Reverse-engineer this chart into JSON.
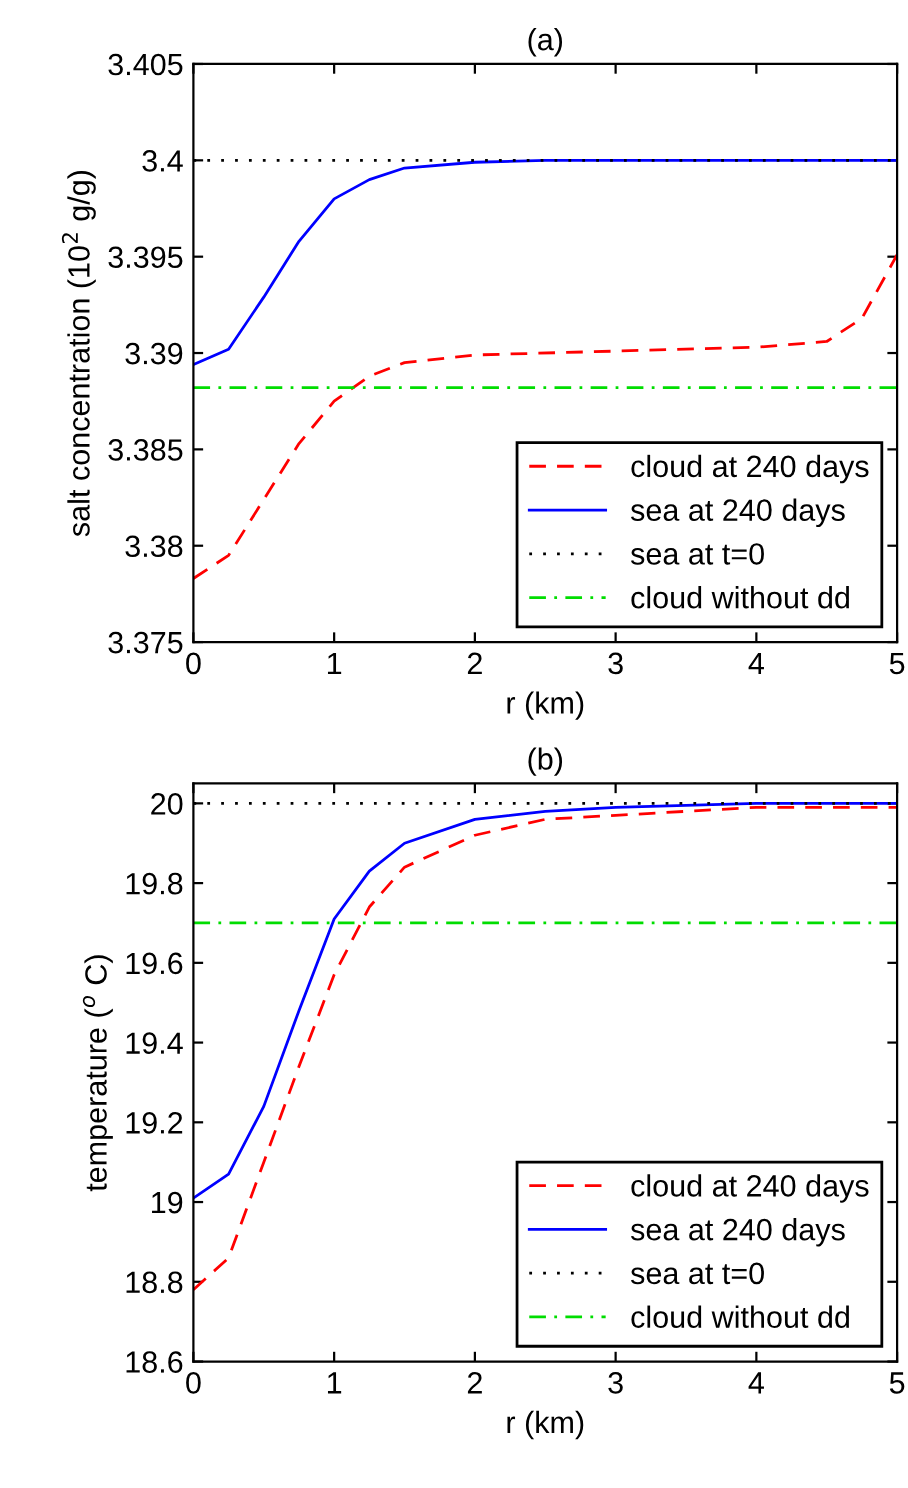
{
  "chart_data": [
    {
      "type": "line",
      "title": "(a)",
      "xlabel": "r (km)",
      "ylabel": "salt concentration (10$^{2}$ g/g)",
      "xlim": [
        0,
        5
      ],
      "xticks": [
        0,
        1,
        2,
        3,
        4,
        5
      ],
      "ylim": [
        3.375,
        3.405
      ],
      "yticks": [
        3.375,
        3.38,
        3.385,
        3.39,
        3.395,
        3.4,
        3.405
      ],
      "grid": false,
      "legend": "bottom right",
      "series": [
        {
          "name": "cloud at 240 days",
          "color": "#ff0000",
          "line_style": "dashed",
          "x": [
            0,
            0.25,
            0.5,
            0.75,
            1,
            1.25,
            1.5,
            2,
            3,
            4,
            4.5,
            4.75,
            5
          ],
          "values": [
            3.3783,
            3.3795,
            3.3824,
            3.3853,
            3.3875,
            3.3888,
            3.3895,
            3.3899,
            3.3901,
            3.3903,
            3.3906,
            3.3918,
            3.3951
          ]
        },
        {
          "name": "sea at 240 days",
          "color": "#0000ff",
          "line_style": "solid",
          "x": [
            0,
            0.25,
            0.5,
            0.75,
            1,
            1.25,
            1.5,
            2,
            2.5,
            3,
            4,
            5
          ],
          "values": [
            3.3894,
            3.3902,
            3.3929,
            3.3958,
            3.398,
            3.399,
            3.3996,
            3.3999,
            3.4,
            3.4,
            3.4,
            3.4
          ]
        },
        {
          "name": "sea at t=0",
          "color": "#000000",
          "line_style": "dotted",
          "x": [
            0,
            5
          ],
          "values": [
            3.4,
            3.4
          ]
        },
        {
          "name": "cloud without dd",
          "color": "#00dd00",
          "line_style": "dashdot",
          "x": [
            0,
            5
          ],
          "values": [
            3.3882,
            3.3882
          ]
        }
      ]
    },
    {
      "type": "line",
      "title": "(b)",
      "xlabel": "r (km)",
      "ylabel": "temperature ($^{o}$ C)",
      "xlim": [
        0,
        5
      ],
      "xticks": [
        0,
        1,
        2,
        3,
        4,
        5
      ],
      "ylim": [
        18.6,
        20.05
      ],
      "yticks": [
        18.6,
        18.8,
        19,
        19.2,
        19.4,
        19.6,
        19.8,
        20
      ],
      "grid": false,
      "legend": "bottom right",
      "series": [
        {
          "name": "cloud at 240 days",
          "color": "#ff0000",
          "line_style": "dashed",
          "x": [
            0,
            0.25,
            0.5,
            0.75,
            1,
            1.25,
            1.5,
            2,
            2.5,
            3,
            4,
            5
          ],
          "values": [
            18.78,
            18.86,
            19.1,
            19.34,
            19.57,
            19.74,
            19.84,
            19.92,
            19.96,
            19.97,
            19.99,
            19.99
          ]
        },
        {
          "name": "sea at 240 days",
          "color": "#0000ff",
          "line_style": "solid",
          "x": [
            0,
            0.25,
            0.5,
            0.75,
            1,
            1.25,
            1.5,
            2,
            2.5,
            3,
            4,
            5
          ],
          "values": [
            19.01,
            19.07,
            19.24,
            19.48,
            19.71,
            19.83,
            19.9,
            19.96,
            19.98,
            19.99,
            20,
            20
          ]
        },
        {
          "name": "sea at t=0",
          "color": "#000000",
          "line_style": "dotted",
          "x": [
            0,
            5
          ],
          "values": [
            20,
            20
          ]
        },
        {
          "name": "cloud without dd",
          "color": "#00dd00",
          "line_style": "dashdot",
          "x": [
            0,
            5
          ],
          "values": [
            19.7,
            19.7
          ]
        }
      ]
    }
  ]
}
